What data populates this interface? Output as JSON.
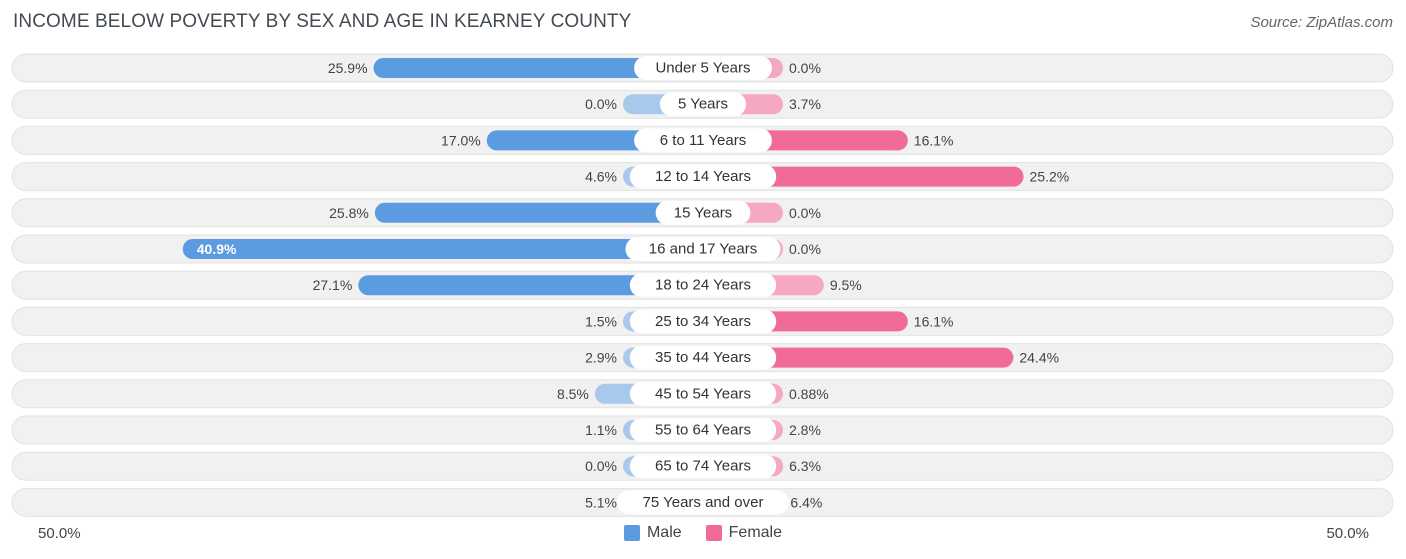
{
  "header": {
    "title": "INCOME BELOW POVERTY BY SEX AND AGE IN KEARNEY COUNTY",
    "source": "Source: ZipAtlas.com"
  },
  "axis": {
    "left_label": "50.0%",
    "right_label": "50.0%"
  },
  "legend": {
    "male_label": "Male",
    "female_label": "Female"
  },
  "colors": {
    "male_strong": "#5b9be0",
    "male_light": "#a9c9ec",
    "female_strong": "#f06b96",
    "female_light": "#f6a8c2",
    "row_bg": "#f1f1f1"
  },
  "chart_data": {
    "type": "bar",
    "orientation": "horizontal-diverging",
    "title": "INCOME BELOW POVERTY BY SEX AND AGE IN KEARNEY COUNTY",
    "xlim": [
      0,
      50
    ],
    "categories": [
      "Under 5 Years",
      "5 Years",
      "6 to 11 Years",
      "12 to 14 Years",
      "15 Years",
      "16 and 17 Years",
      "18 to 24 Years",
      "25 to 34 Years",
      "35 to 44 Years",
      "45 to 54 Years",
      "55 to 64 Years",
      "65 to 74 Years",
      "75 Years and over"
    ],
    "series": [
      {
        "name": "Male",
        "values": [
          25.9,
          0.0,
          17.0,
          4.6,
          25.8,
          40.9,
          27.1,
          1.5,
          2.9,
          8.5,
          1.1,
          0.0,
          5.1
        ],
        "labels": [
          "25.9%",
          "0.0%",
          "17.0%",
          "4.6%",
          "25.8%",
          "40.9%",
          "27.1%",
          "1.5%",
          "2.9%",
          "8.5%",
          "1.1%",
          "0.0%",
          "5.1%"
        ]
      },
      {
        "name": "Female",
        "values": [
          0.0,
          3.7,
          16.1,
          25.2,
          0.0,
          0.0,
          9.5,
          16.1,
          24.4,
          0.88,
          2.8,
          6.3,
          6.4
        ],
        "labels": [
          "0.0%",
          "3.7%",
          "16.1%",
          "25.2%",
          "0.0%",
          "0.0%",
          "9.5%",
          "16.1%",
          "24.4%",
          "0.88%",
          "2.8%",
          "6.3%",
          "6.4%"
        ]
      }
    ]
  }
}
